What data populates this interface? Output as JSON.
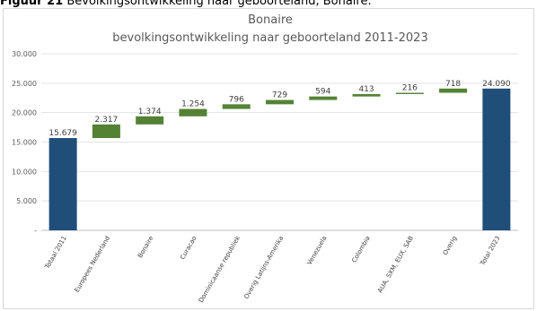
{
  "figure_label": "Figuur 21",
  "figure_caption": "Bevolkingsontwikkeling naar geboorteland, Bonaire.",
  "chart_data": {
    "type": "bar",
    "subtype": "waterfall",
    "title": "Bonaire",
    "subtitle": "bevolkingsontwikkeling naar geboorteland 2011-2023",
    "xlabel": "",
    "ylabel": "",
    "ylim": [
      0,
      30000
    ],
    "yticks": [
      0,
      5000,
      10000,
      15000,
      20000,
      25000,
      30000
    ],
    "ytick_labels": [
      "-",
      "5.000",
      "10.000",
      "15.000",
      "20.000",
      "25.000",
      "30.000"
    ],
    "grid": true,
    "legend": "none",
    "colors": {
      "total": "#1f4e79",
      "increase": "#548235"
    },
    "categories": [
      "Totaal 2011",
      "Europees Nederland",
      "Bonaire",
      "Curacao",
      "Dominicaanse republiek",
      "Overig Latijns-Amerika",
      "Venezuela",
      "Colombia",
      "AUA, SXM, EUX, SAB",
      "Overig",
      "Total 2023"
    ],
    "bars": [
      {
        "category": "Totaal 2011",
        "value": 15679,
        "label": "15.679",
        "kind": "total"
      },
      {
        "category": "Europees Nederland",
        "value": 2317,
        "label": "2.317",
        "kind": "increase"
      },
      {
        "category": "Bonaire",
        "value": 1374,
        "label": "1.374",
        "kind": "increase"
      },
      {
        "category": "Curacao",
        "value": 1254,
        "label": "1.254",
        "kind": "increase"
      },
      {
        "category": "Dominicaanse republiek",
        "value": 796,
        "label": "796",
        "kind": "increase"
      },
      {
        "category": "Overig Latijns-Amerika",
        "value": 729,
        "label": "729",
        "kind": "increase"
      },
      {
        "category": "Venezuela",
        "value": 594,
        "label": "594",
        "kind": "increase"
      },
      {
        "category": "Colombia",
        "value": 413,
        "label": "413",
        "kind": "increase"
      },
      {
        "category": "AUA, SXM, EUX, SAB",
        "value": 216,
        "label": "216",
        "kind": "increase"
      },
      {
        "category": "Overig",
        "value": 718,
        "label": "718",
        "kind": "increase"
      },
      {
        "category": "Total 2023",
        "value": 24090,
        "label": "24.090",
        "kind": "total"
      }
    ]
  }
}
